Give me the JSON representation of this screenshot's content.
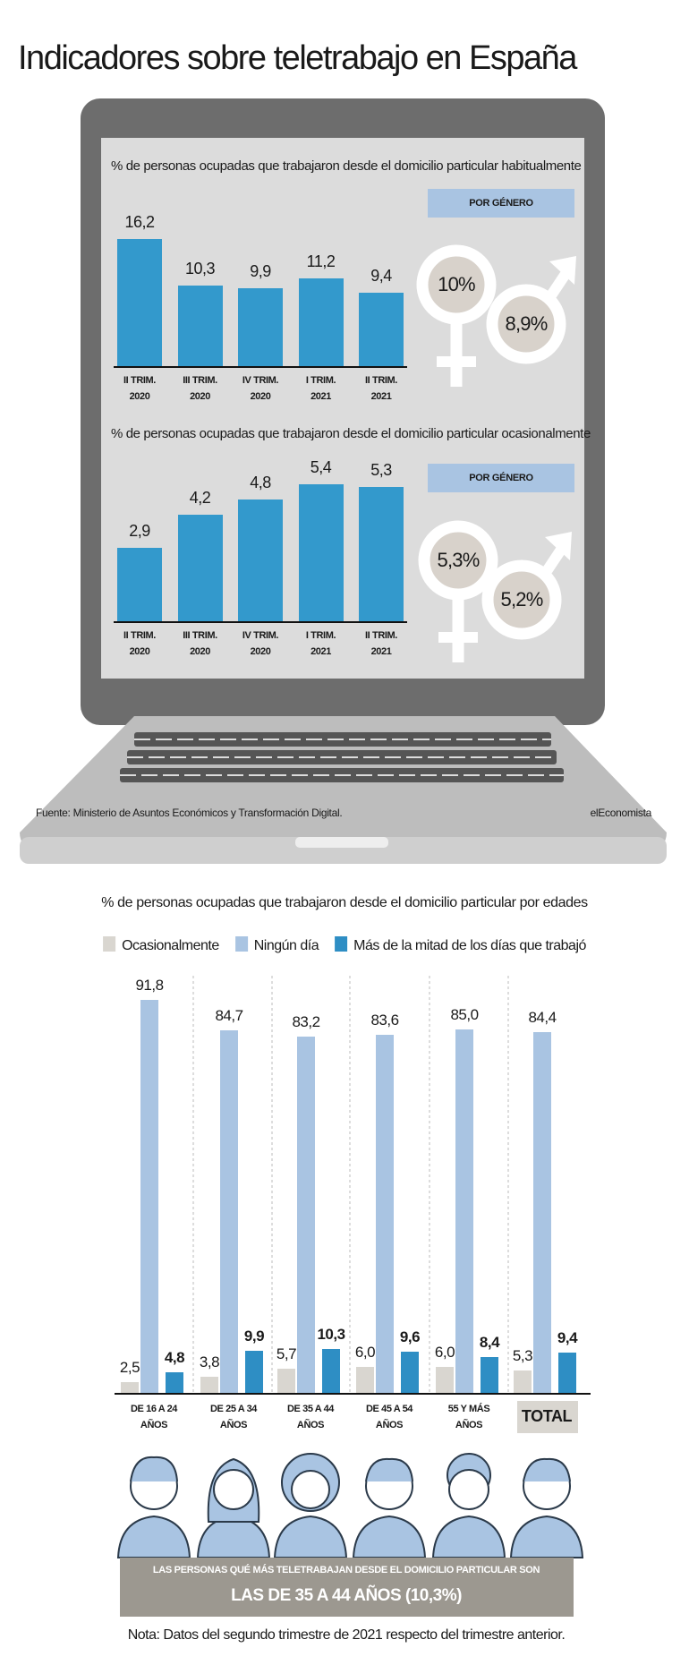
{
  "title": "Indicadores sobre teletrabajo en España",
  "source": "Fuente: Ministerio de Asuntos Económicos y Transformación Digital.",
  "brand": "elEconomista",
  "banner": {
    "line1": "LAS PERSONAS QUÉ MÁS TELETRABAJAN DESDE EL DOMICILIO PARTICULAR SON",
    "line2": "LAS DE 35 A 44 AÑOS (10,3%)"
  },
  "note": "Nota: Datos del segundo trimestre de 2021 respecto del trimestre anterior.",
  "chart_data": [
    {
      "type": "bar",
      "title": "% de personas ocupadas que trabajaron desde el domicilio particular habitualmente",
      "categories": [
        "II TRIM. 2020",
        "III TRIM. 2020",
        "IV TRIM. 2020",
        "I TRIM. 2021",
        "II TRIM. 2021"
      ],
      "values": [
        16.2,
        10.3,
        9.9,
        11.2,
        9.4
      ],
      "value_labels": [
        "16,2",
        "10,3",
        "9,9",
        "11,2",
        "9,4"
      ],
      "color": "#3399cc",
      "ylim": [
        0,
        20
      ],
      "gender_title": "POR GÉNERO",
      "gender_values": [
        10,
        8.9
      ],
      "gender_value_labels": [
        "10%",
        "8,9%"
      ]
    },
    {
      "type": "bar",
      "title": "% de personas ocupadas que trabajaron desde el domicilio particular ocasionalmente",
      "categories": [
        "II TRIM. 2020",
        "III TRIM. 2020",
        "IV TRIM. 2020",
        "I TRIM. 2021",
        "II TRIM. 2021"
      ],
      "values": [
        2.9,
        4.2,
        4.8,
        5.4,
        5.3
      ],
      "value_labels": [
        "2,9",
        "4,2",
        "4,8",
        "5,4",
        "5,3"
      ],
      "color": "#3399cc",
      "ylim": [
        0,
        6
      ],
      "gender_title": "POR GÉNERO",
      "gender_values": [
        5.3,
        5.2
      ],
      "gender_value_labels": [
        "5,3%",
        "5,2%"
      ]
    },
    {
      "type": "grouped_bar",
      "title": "% de personas ocupadas que trabajaron desde el domicilio particular por edades",
      "categories": [
        "DE 16 A 24 AÑOS",
        "DE 25 A 34 AÑOS",
        "DE 35 A 44 AÑOS",
        "DE 45 A 54 AÑOS",
        "55 Y MÁS AÑOS",
        "TOTAL"
      ],
      "series": [
        {
          "name": "Ocasionalmente",
          "color": "#d9d6d0",
          "values": [
            2.5,
            3.8,
            5.7,
            6.0,
            6.0,
            5.3
          ],
          "value_labels": [
            "2,5",
            "3,8",
            "5,7",
            "6,0",
            "6,0",
            "5,3"
          ]
        },
        {
          "name": "Ningún día",
          "color": "#a9c4e2",
          "values": [
            91.8,
            84.7,
            83.2,
            83.6,
            85.0,
            84.4
          ],
          "value_labels": [
            "91,8",
            "84,7",
            "83,2",
            "83,6",
            "85,0",
            "84,4"
          ]
        },
        {
          "name": "Más de la mitad de los días que trabajó",
          "color": "#2e8ec4",
          "values": [
            4.8,
            9.9,
            10.3,
            9.6,
            8.4,
            9.4
          ],
          "value_labels": [
            "4,8",
            "9,9",
            "10,3",
            "9,6",
            "8,4",
            "9,4"
          ]
        }
      ],
      "ylim": [
        0,
        100
      ]
    }
  ]
}
